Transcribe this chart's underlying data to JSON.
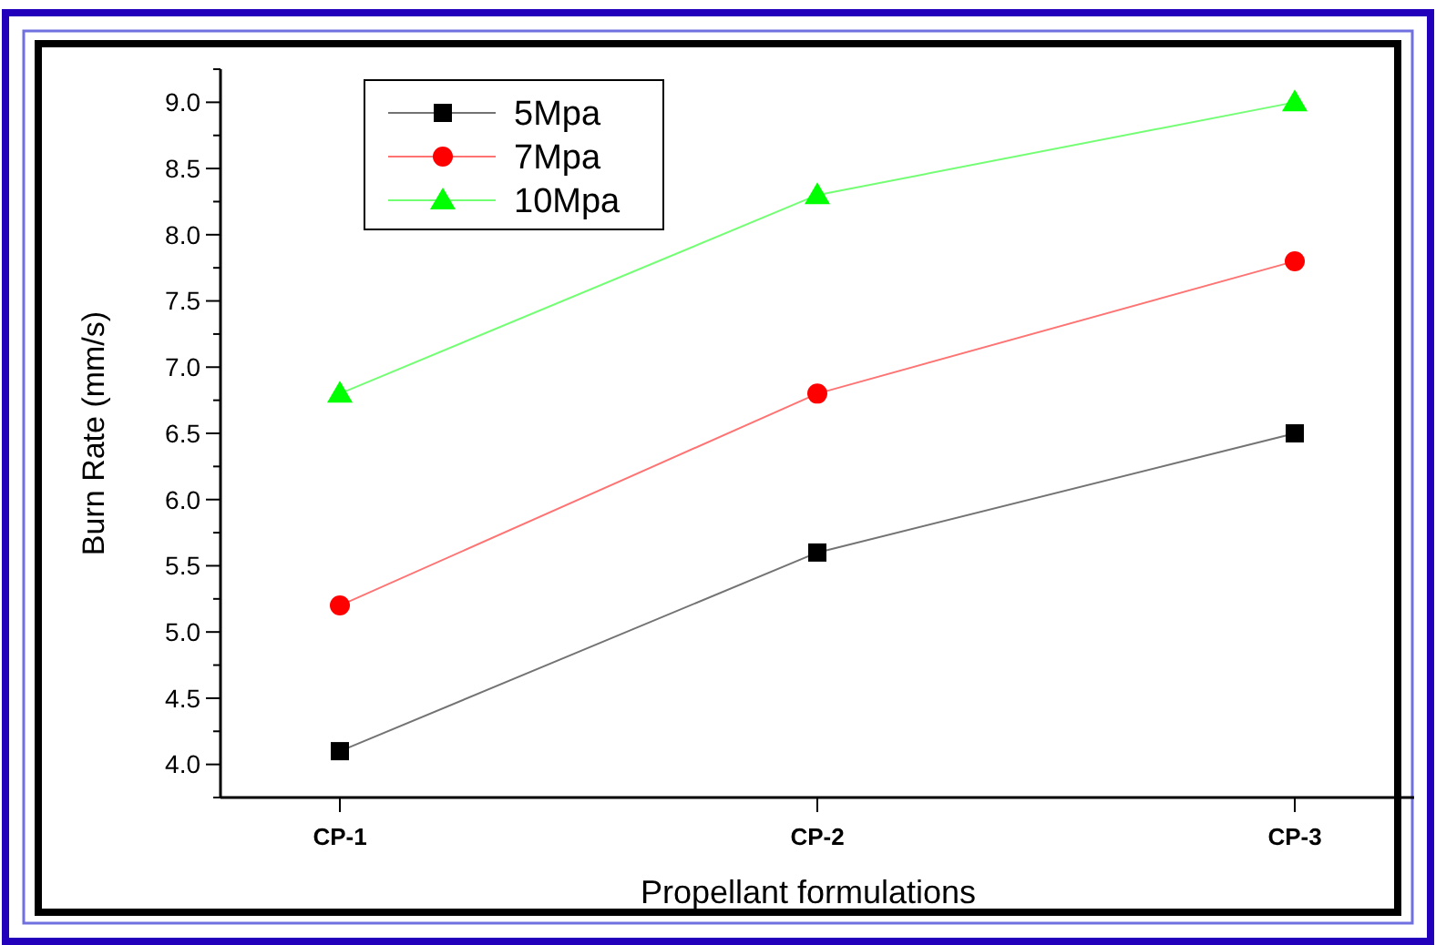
{
  "chart_data": {
    "type": "line",
    "xlabel": "Propellant formulations",
    "ylabel": "Burn Rate (mm/s)",
    "categories": [
      "CP-1",
      "CP-2",
      "CP-3"
    ],
    "series": [
      {
        "name": "5Mpa",
        "color": "#000000",
        "values": [
          4.1,
          5.6,
          6.5
        ],
        "marker": "square"
      },
      {
        "name": "7Mpa",
        "color": "#ff0000",
        "values": [
          5.2,
          6.8,
          7.8
        ],
        "marker": "circle"
      },
      {
        "name": "10Mpa",
        "color": "#00ff00",
        "values": [
          6.8,
          8.3,
          9.0
        ],
        "marker": "triangle"
      }
    ],
    "ylim": [
      3.75,
      9.25
    ],
    "yticks": [
      {
        "value": 3.75,
        "label": null
      },
      {
        "value": 4.0,
        "label": "4.0"
      },
      {
        "value": 4.25,
        "label": null
      },
      {
        "value": 4.5,
        "label": "4.5"
      },
      {
        "value": 4.75,
        "label": null
      },
      {
        "value": 5.0,
        "label": "5.0"
      },
      {
        "value": 5.25,
        "label": null
      },
      {
        "value": 5.5,
        "label": "5.5"
      },
      {
        "value": 5.75,
        "label": null
      },
      {
        "value": 6.0,
        "label": "6.0"
      },
      {
        "value": 6.25,
        "label": null
      },
      {
        "value": 6.5,
        "label": "6.5"
      },
      {
        "value": 6.75,
        "label": null
      },
      {
        "value": 7.0,
        "label": "7.0"
      },
      {
        "value": 7.25,
        "label": null
      },
      {
        "value": 7.5,
        "label": "7.5"
      },
      {
        "value": 7.75,
        "label": null
      },
      {
        "value": 8.0,
        "label": "8.0"
      },
      {
        "value": 8.25,
        "label": null
      },
      {
        "value": 8.5,
        "label": "8.5"
      },
      {
        "value": 8.75,
        "label": null
      },
      {
        "value": 9.0,
        "label": "9.0"
      },
      {
        "value": 9.25,
        "label": null
      }
    ],
    "grid": false,
    "legend": "top left",
    "line_style": "solid"
  }
}
